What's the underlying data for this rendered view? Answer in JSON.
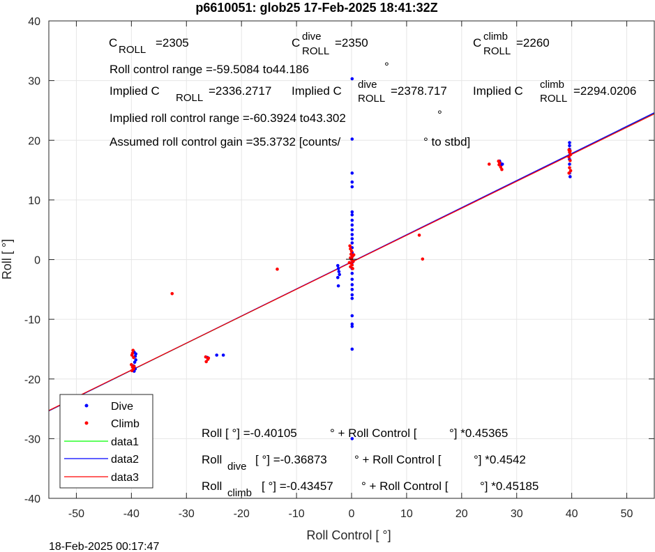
{
  "chart_data": {
    "type": "scatter",
    "title": "p6610051: glob25 17-Feb-2025 18:41:32Z",
    "xlabel": "Roll Control [   °]",
    "ylabel": "Roll [  °]",
    "xlim": [
      -55,
      55
    ],
    "ylim": [
      -40,
      40
    ],
    "xticks": [
      -50,
      -40,
      -30,
      -20,
      -10,
      0,
      10,
      20,
      30,
      40,
      50
    ],
    "yticks": [
      -40,
      -30,
      -20,
      -10,
      0,
      10,
      20,
      30,
      40
    ],
    "xtick_labels": [
      "-50",
      "-40",
      "-30",
      "-20",
      "-10",
      "0",
      "10",
      "20",
      "30",
      "40",
      "50"
    ],
    "ytick_labels": [
      "-40",
      "-30",
      "-20",
      "-10",
      "0",
      "10",
      "20",
      "30",
      "40"
    ],
    "grid": true,
    "legend_position": "bottom-left",
    "timestamp": "18-Feb-2025 00:17:47",
    "series": [
      {
        "name": "Dive",
        "color": "#0000ff",
        "marker": "dot",
        "points": [
          [
            -39.5,
            -15.5
          ],
          [
            -39.3,
            -16.2
          ],
          [
            -39.2,
            -16.8
          ],
          [
            -39.4,
            -17.2
          ],
          [
            -39.6,
            -17.8
          ],
          [
            -39.3,
            -18.3
          ],
          [
            -39.5,
            -18.7
          ],
          [
            -39.2,
            -15.8
          ],
          [
            -26.2,
            -16.4
          ],
          [
            -24.5,
            -16.0
          ],
          [
            -23.3,
            -16.0
          ],
          [
            -2.5,
            -1.0
          ],
          [
            -2.4,
            -1.5
          ],
          [
            -2.3,
            -2.0
          ],
          [
            -2.2,
            -2.5
          ],
          [
            -2.5,
            -3.0
          ],
          [
            -2.4,
            -4.4
          ],
          [
            0.1,
            30.3
          ],
          [
            0.1,
            20.2
          ],
          [
            0.1,
            14.5
          ],
          [
            0.1,
            13.0
          ],
          [
            0.1,
            12.2
          ],
          [
            0.1,
            8.0
          ],
          [
            0.1,
            7.5
          ],
          [
            0.1,
            6.6
          ],
          [
            0.1,
            5.8
          ],
          [
            0.1,
            5.0
          ],
          [
            0.1,
            4.2
          ],
          [
            0.1,
            3.5
          ],
          [
            0.1,
            2.8
          ],
          [
            0.1,
            2.0
          ],
          [
            0.1,
            1.2
          ],
          [
            0.1,
            0.5
          ],
          [
            0.1,
            -0.5
          ],
          [
            0.1,
            -1.5
          ],
          [
            0.1,
            -2.3
          ],
          [
            0.1,
            -3.3
          ],
          [
            0.1,
            -4.2
          ],
          [
            0.1,
            -5.0
          ],
          [
            0.1,
            -5.9
          ],
          [
            0.1,
            -6.5
          ],
          [
            0.1,
            -9.4
          ],
          [
            0.1,
            -10.8
          ],
          [
            0.1,
            -11.2
          ],
          [
            0.1,
            -15.0
          ],
          [
            0.1,
            -30.0
          ],
          [
            27.0,
            16.2
          ],
          [
            27.2,
            15.9
          ],
          [
            27.4,
            16.0
          ],
          [
            26.9,
            16.5
          ],
          [
            39.6,
            19.6
          ],
          [
            39.6,
            19.1
          ],
          [
            39.6,
            18.5
          ],
          [
            39.7,
            17.6
          ],
          [
            39.6,
            16.8
          ],
          [
            39.6,
            16.0
          ],
          [
            39.6,
            14.5
          ],
          [
            39.7,
            13.9
          ]
        ]
      },
      {
        "name": "Climb",
        "color": "#ff0000",
        "marker": "dot",
        "points": [
          [
            -39.7,
            -15.2
          ],
          [
            -39.8,
            -15.7
          ],
          [
            -39.9,
            -16.0
          ],
          [
            -39.6,
            -16.4
          ],
          [
            -40.0,
            -17.6
          ],
          [
            -39.8,
            -18.0
          ],
          [
            -39.6,
            -18.3
          ],
          [
            -39.9,
            -18.6
          ],
          [
            -39.5,
            -17.9
          ],
          [
            -32.6,
            -5.7
          ],
          [
            -26.5,
            -16.3
          ],
          [
            -26.1,
            -16.7
          ],
          [
            -26.4,
            -17.1
          ],
          [
            -26.0,
            -16.5
          ],
          [
            -13.5,
            -1.6
          ],
          [
            -0.3,
            2.3
          ],
          [
            -0.2,
            1.8
          ],
          [
            0.0,
            1.4
          ],
          [
            -0.1,
            0.9
          ],
          [
            0.2,
            0.6
          ],
          [
            -0.2,
            0.3
          ],
          [
            0.0,
            0.0
          ],
          [
            0.3,
            -0.3
          ],
          [
            -0.1,
            -0.6
          ],
          [
            0.1,
            -0.9
          ],
          [
            -0.2,
            -1.2
          ],
          [
            0.2,
            -1.5
          ],
          [
            0.0,
            0.2
          ],
          [
            0.4,
            0.8
          ],
          [
            -0.4,
            -0.5
          ],
          [
            12.3,
            4.1
          ],
          [
            12.9,
            0.1
          ],
          [
            25.0,
            16.0
          ],
          [
            26.7,
            16.5
          ],
          [
            26.8,
            15.9
          ],
          [
            27.1,
            15.5
          ],
          [
            27.3,
            15.1
          ],
          [
            26.9,
            16.2
          ],
          [
            39.5,
            18.4
          ],
          [
            39.6,
            18.0
          ],
          [
            39.8,
            17.6
          ],
          [
            39.5,
            17.2
          ],
          [
            39.7,
            16.6
          ],
          [
            39.6,
            15.4
          ],
          [
            39.8,
            14.9
          ],
          [
            39.5,
            14.5
          ],
          [
            39.7,
            18.2
          ]
        ]
      },
      {
        "name": "data1",
        "color": "#00ff00",
        "type": "line",
        "intercept": -0.40105,
        "slope": 0.45365,
        "x": [
          -55,
          55
        ]
      },
      {
        "name": "data2",
        "color": "#0000ff",
        "type": "line",
        "intercept": -0.36873,
        "slope": 0.4542,
        "x": [
          -55,
          55
        ]
      },
      {
        "name": "data3",
        "color": "#ff0000",
        "type": "line",
        "intercept": -0.43457,
        "slope": 0.45185,
        "x": [
          -55,
          55
        ]
      }
    ],
    "annotations": {
      "c_roll": {
        "base": "C",
        "sub": "ROLL",
        "value": "=2305"
      },
      "c_roll_dive": {
        "base": "C",
        "sup": "dive",
        "sub": "ROLL",
        "value": "=2350"
      },
      "c_roll_climb": {
        "base": "C",
        "sup": "climb",
        "sub": "ROLL",
        "value": "=2260"
      },
      "roll_range": "Roll control range =-59.5084 to44.186",
      "implied_c": {
        "prefix": "Implied C",
        "sub": "ROLL",
        "value": "=2336.2717"
      },
      "implied_c_dive": {
        "prefix": "Implied C",
        "sup": "dive",
        "sub": "ROLL",
        "value": "=2378.717"
      },
      "implied_c_climb": {
        "prefix": "Implied C",
        "sup": "climb",
        "sub": "ROLL",
        "value": "=2294.0206"
      },
      "implied_range": "Implied roll control range =-60.3924 to43.302",
      "gain_a": "Assumed roll control gain =35.3732 [counts/",
      "gain_b": "° to stbd]",
      "fit_all": {
        "a": "Roll [  °] =-0.40105",
        "b": "° + Roll Control [",
        "c": "°] *0.45365"
      },
      "fit_dive": {
        "a1": "Roll",
        "sub": "dive",
        "a2": "[  °] =-0.36873",
        "b": "° + Roll Control [",
        "c": "°] *0.4542"
      },
      "fit_climb": {
        "a1": "Roll",
        "sub": "climb",
        "a2": "[  °] =-0.43457",
        "b": "° + Roll Control [",
        "c": "°] *0.45185"
      },
      "stray_degree_1": "°",
      "stray_degree_2": "°"
    }
  }
}
